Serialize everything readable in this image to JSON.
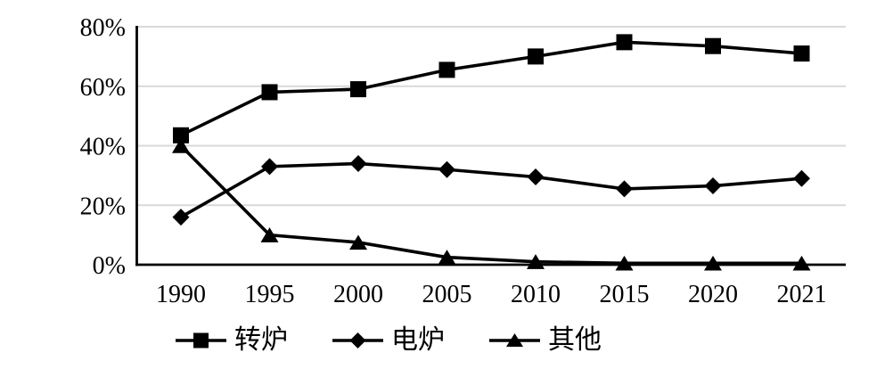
{
  "chart_data": {
    "type": "line",
    "categories": [
      "1990",
      "1995",
      "2000",
      "2005",
      "2010",
      "2015",
      "2020",
      "2021"
    ],
    "series": [
      {
        "name": "转炉",
        "marker": "square",
        "values": [
          43.5,
          58,
          59,
          65.5,
          70,
          74.8,
          73.5,
          71
        ]
      },
      {
        "name": "电炉",
        "marker": "diamond",
        "values": [
          16,
          33,
          34,
          32,
          29.5,
          25.5,
          26.5,
          29
        ]
      },
      {
        "name": "其他",
        "marker": "triangle",
        "values": [
          40,
          10,
          7.5,
          2.5,
          1,
          0.5,
          0.5,
          0.5
        ]
      }
    ],
    "ylim": [
      0,
      80
    ],
    "yticks": [
      0,
      20,
      40,
      60,
      80
    ],
    "ytick_labels": [
      "0%",
      "20%",
      "40%",
      "60%",
      "80%"
    ],
    "grid": true,
    "legend_position": "bottom",
    "series_color": "#000000",
    "axis_color": "#000000",
    "grid_color": "#d9d9d9"
  }
}
